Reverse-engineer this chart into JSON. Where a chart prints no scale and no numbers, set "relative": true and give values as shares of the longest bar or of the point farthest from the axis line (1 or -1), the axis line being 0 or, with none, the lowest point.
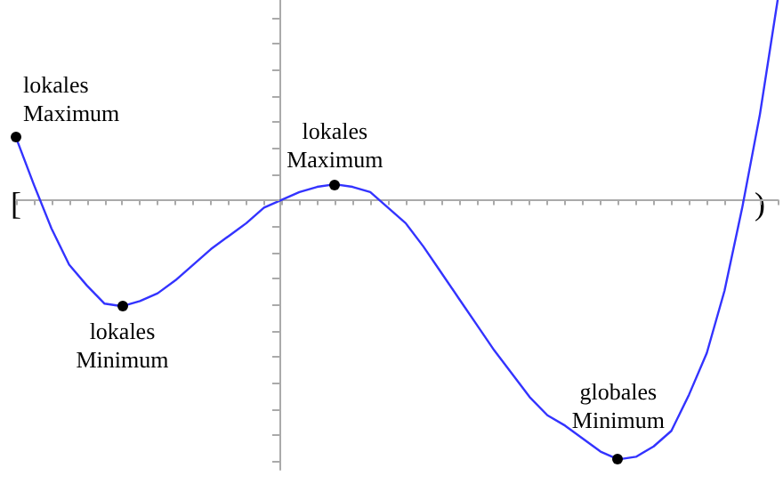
{
  "chart_data": {
    "type": "line",
    "relative": true,
    "categories": [
      null,
      null,
      null,
      null,
      null,
      null,
      null,
      null,
      null,
      null,
      null,
      null,
      null,
      null,
      null,
      null,
      null,
      null,
      null,
      null,
      null,
      null,
      null,
      null,
      null,
      null,
      null,
      null,
      null,
      null,
      null,
      null,
      null,
      null,
      null,
      null,
      null,
      null,
      null,
      null,
      null,
      null,
      null,
      null
    ],
    "series": [
      {
        "color": "#3333ff",
        "values": [
          0.24,
          0.06,
          -0.11,
          -0.25,
          -0.33,
          -0.4,
          -0.41,
          -0.39,
          -0.36,
          -0.31,
          -0.25,
          -0.19,
          -0.14,
          -0.09,
          -0.03,
          0,
          0.03,
          0.05,
          0.06,
          0.05,
          0.03,
          -0.03,
          -0.09,
          -0.18,
          -0.28,
          -0.38,
          -0.48,
          -0.58,
          -0.67,
          -0.76,
          -0.83,
          -0.87,
          -0.92,
          -0.97,
          -1,
          -0.99,
          -0.95,
          -0.89,
          -0.75,
          -0.59,
          -0.35,
          -0.03,
          0.33,
          0.77
        ]
      }
    ],
    "annotations": [
      "lokales\nMaximum",
      "lokales\nMinimum",
      "lokales\nMaximum",
      "globales\nMinimum",
      "[",
      ")"
    ]
  }
}
